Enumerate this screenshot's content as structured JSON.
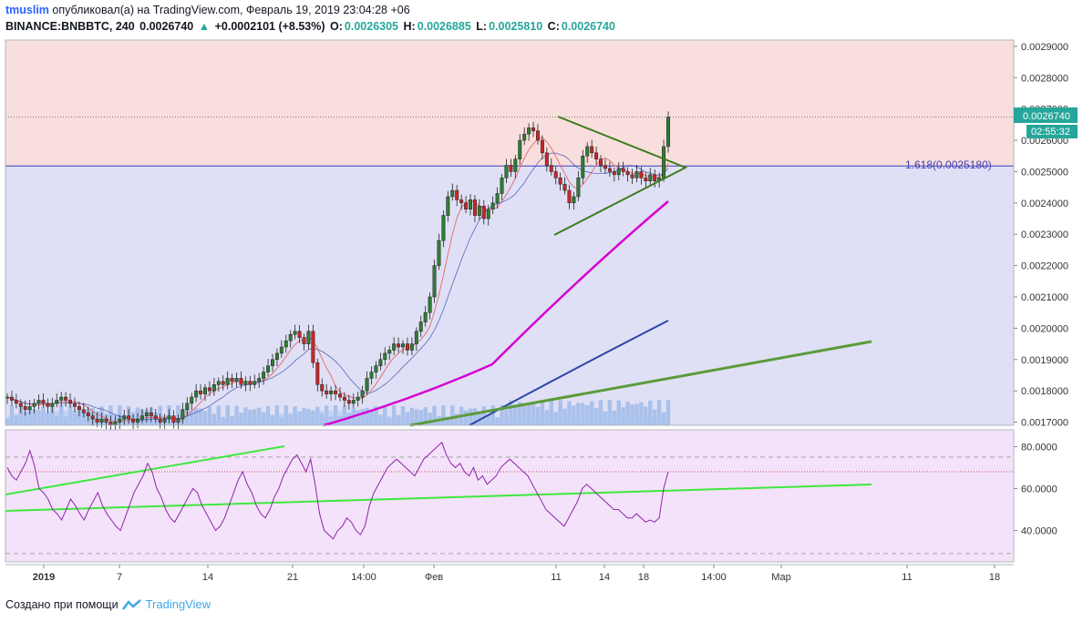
{
  "header": {
    "user": "tmuslim",
    "published": "опубликовал(а) на TradingView.com, Февраль 19, 2019 23:04:28 +06",
    "symbol": "BINANCE:BNBBTC, 240",
    "last": "0.0026740",
    "change": "+0.0002101 (+8.53%)",
    "o_label": "O:",
    "o_value": "0.0026305",
    "h_label": "H:",
    "h_value": "0.0026885",
    "l_label": "L:",
    "l_value": "0.0025810",
    "c_label": "C:",
    "c_value": "0.0026740"
  },
  "footer": {
    "created": "Создано при помощи",
    "brand": "TradingView"
  },
  "colors": {
    "up": "#26a69a",
    "down": "#ef5350",
    "candle_up_body": "#2e7d32",
    "candle_down_body": "#c62828",
    "upper_zone": "#f8dedd",
    "lower_zone": "#dfe0f5",
    "rsi_bg": "#f4e2fa",
    "trend_green": "#5b9b3a",
    "triangle": "#3d7d1e",
    "ma_magenta": "#d500d5",
    "ma_blue": "#2c45a8",
    "rsi_line": "#8e24aa",
    "rsi_trend": "#3ee83e",
    "fib_line": "#3f3fb8"
  },
  "chart_data": [
    {
      "type": "candlestick",
      "title": "BINANCE:BNBBTC, 240",
      "y_axis_side": "right",
      "ylim": [
        0.00169,
        0.00292
      ],
      "y_ticks": [
        "0.0029000",
        "0.0028000",
        "0.0027000",
        "0.0026000",
        "0.0025000",
        "0.0024000",
        "0.0023000",
        "0.0022000",
        "0.0021000",
        "0.0020000",
        "0.0019000",
        "0.0018000",
        "0.0017000"
      ],
      "x_ticks": [
        "2019",
        "7",
        "14",
        "21",
        "14:00",
        "Фев",
        "11",
        "14",
        "18",
        "14:00",
        "Мар",
        "11",
        "18"
      ],
      "last_price_label": "0.0026740",
      "countdown_label": "02:55:32",
      "fib_label": "1.618(0.0025180)",
      "fib_level": 0.002518,
      "close_series": [
        0.00178,
        0.00177,
        0.00176,
        0.00175,
        0.00174,
        0.00175,
        0.00176,
        0.00177,
        0.00176,
        0.00175,
        0.00176,
        0.00177,
        0.00178,
        0.00177,
        0.00176,
        0.00175,
        0.00174,
        0.00173,
        0.00172,
        0.00171,
        0.0017,
        0.00171,
        0.0017,
        0.00169,
        0.0017,
        0.00171,
        0.00172,
        0.00171,
        0.0017,
        0.00171,
        0.00172,
        0.00173,
        0.00172,
        0.00171,
        0.0017,
        0.00171,
        0.00172,
        0.0017,
        0.00171,
        0.00174,
        0.00176,
        0.00178,
        0.0018,
        0.00179,
        0.00181,
        0.0018,
        0.00182,
        0.00183,
        0.00182,
        0.00184,
        0.00183,
        0.00184,
        0.00182,
        0.00183,
        0.00182,
        0.00183,
        0.00184,
        0.00186,
        0.00188,
        0.0019,
        0.00192,
        0.00194,
        0.00196,
        0.00198,
        0.00199,
        0.00197,
        0.00195,
        0.00199,
        0.00189,
        0.00182,
        0.0018,
        0.00179,
        0.0018,
        0.00179,
        0.00178,
        0.00177,
        0.00176,
        0.00177,
        0.00178,
        0.0018,
        0.00184,
        0.00186,
        0.00188,
        0.0019,
        0.00192,
        0.00193,
        0.00195,
        0.00194,
        0.00195,
        0.00193,
        0.00195,
        0.00199,
        0.00202,
        0.00205,
        0.0021,
        0.0022,
        0.00228,
        0.00236,
        0.00242,
        0.00244,
        0.00241,
        0.0024,
        0.00238,
        0.00241,
        0.00236,
        0.00239,
        0.00235,
        0.00238,
        0.0024,
        0.00243,
        0.00248,
        0.00252,
        0.0025,
        0.00254,
        0.0026,
        0.00262,
        0.00264,
        0.00263,
        0.0026,
        0.00256,
        0.00252,
        0.0025,
        0.00248,
        0.00246,
        0.00244,
        0.0024,
        0.00242,
        0.00248,
        0.00255,
        0.00258,
        0.00256,
        0.00254,
        0.00252,
        0.00251,
        0.0025,
        0.00249,
        0.00251,
        0.0025,
        0.00249,
        0.00248,
        0.0025,
        0.00248,
        0.00247,
        0.00249,
        0.00247,
        0.00248,
        0.00258,
        0.002674
      ],
      "moving_averages": [
        {
          "color": "#d500d5",
          "from": 0.00169,
          "to": 0.0024
        },
        {
          "color": "#2c45a8",
          "from": 0.00169,
          "to": 0.00202
        }
      ],
      "volume": true
    },
    {
      "type": "line",
      "title": "RSI",
      "ylim": [
        25,
        88
      ],
      "y_ticks": [
        "80.0000",
        "60.0000",
        "40.0000"
      ],
      "bands": [
        30,
        70
      ],
      "current_level": 68,
      "rsi_series": [
        70,
        66,
        64,
        68,
        72,
        78,
        71,
        60,
        58,
        55,
        50,
        48,
        45,
        50,
        55,
        52,
        48,
        45,
        50,
        54,
        58,
        52,
        48,
        45,
        42,
        40,
        46,
        52,
        58,
        62,
        66,
        72,
        68,
        60,
        56,
        50,
        46,
        44,
        48,
        52,
        56,
        60,
        58,
        52,
        48,
        44,
        40,
        42,
        46,
        52,
        58,
        64,
        68,
        62,
        58,
        52,
        48,
        46,
        50,
        56,
        60,
        66,
        70,
        74,
        76,
        72,
        68,
        74,
        62,
        48,
        40,
        38,
        36,
        40,
        42,
        46,
        44,
        40,
        38,
        42,
        52,
        58,
        62,
        66,
        70,
        72,
        74,
        72,
        70,
        68,
        66,
        70,
        74,
        76,
        78,
        80,
        82,
        76,
        72,
        70,
        72,
        68,
        66,
        70,
        64,
        66,
        62,
        64,
        66,
        70,
        72,
        74,
        72,
        70,
        68,
        66,
        62,
        58,
        54,
        50,
        48,
        46,
        44,
        42,
        46,
        50,
        54,
        60,
        62,
        60,
        58,
        56,
        54,
        52,
        50,
        50,
        48,
        46,
        46,
        48,
        46,
        44,
        45,
        44,
        46,
        60,
        68
      ],
      "trendlines": true
    }
  ]
}
